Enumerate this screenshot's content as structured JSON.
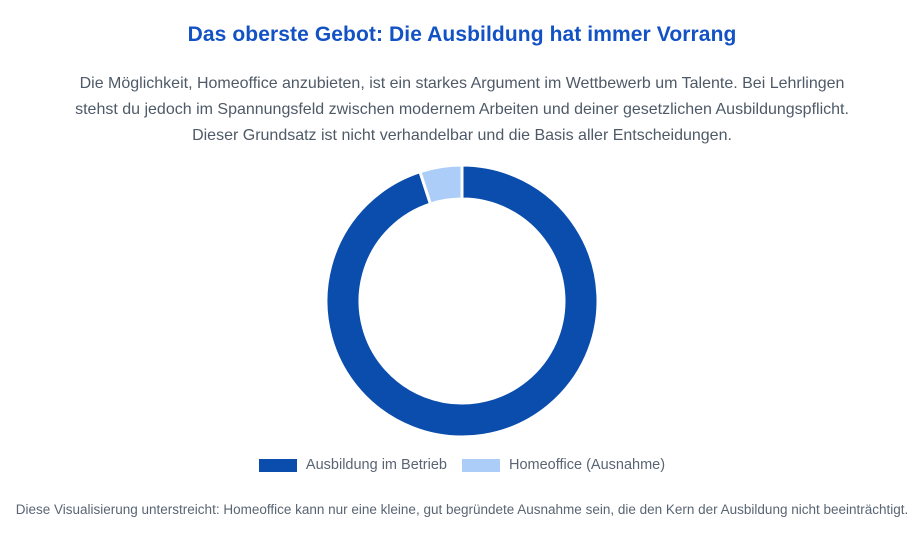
{
  "page": {
    "title": "Das oberste Gebot: Die Ausbildung hat immer Vorrang",
    "intro": "Die Möglichkeit, Homeoffice anzubieten, ist ein starkes Argument im Wettbewerb um Talente. Bei Lehrlingen stehst du jedoch im Spannungsfeld zwischen modernem Arbeiten und deiner gesetzlichen Ausbildungspflicht. Dieser Grundsatz ist nicht verhandelbar und die Basis aller Entscheidungen.",
    "footer": "Diese Visualisierung unterstreicht: Homeoffice kann nur eine kleine, gut begründete Ausnahme sein, die den Kern der Ausbildung nicht beeinträchtigt."
  },
  "colors": {
    "title_blue": "#1252c5",
    "donut_primary": "#0a4dad",
    "donut_secondary": "#abcdf8",
    "body_text": "#4e5a67",
    "legend_text": "#5a6573",
    "slice_border": "#ffffff"
  },
  "chart_data": {
    "type": "pie",
    "variant": "doughnut",
    "labels": [
      "Ausbildung im Betrieb",
      "Homeoffice (Ausnahme)"
    ],
    "values": [
      95,
      5
    ],
    "colors": [
      "#0a4dad",
      "#abcdf8"
    ],
    "cutout_percent": 75,
    "start_angle_deg": 0,
    "direction": "clockwise-from-top",
    "border_color": "#ffffff",
    "border_width": 3,
    "legend_position": "bottom",
    "title": "",
    "data_labels_shown": false
  }
}
